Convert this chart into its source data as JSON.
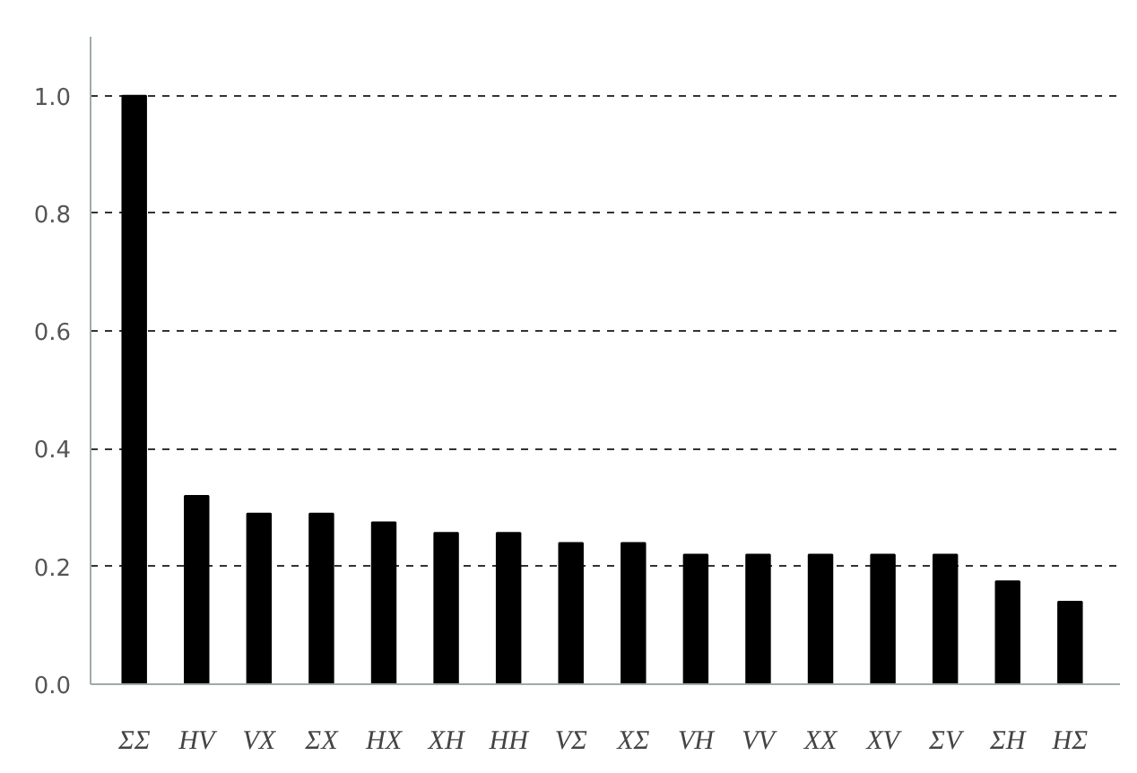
{
  "chart_data": {
    "type": "bar",
    "categories": [
      "ΣΣ",
      "HV",
      "VX",
      "ΣX",
      "HX",
      "XH",
      "HH",
      "VΣ",
      "XΣ",
      "VH",
      "VV",
      "XX",
      "XV",
      "ΣV",
      "ΣH",
      "HΣ"
    ],
    "values": [
      1.0,
      0.32,
      0.29,
      0.29,
      0.275,
      0.257,
      0.257,
      0.24,
      0.24,
      0.22,
      0.22,
      0.22,
      0.22,
      0.22,
      0.175,
      0.14
    ],
    "color": "#000000",
    "ylim": [
      0,
      1.1
    ],
    "yticks": [
      {
        "value": 0,
        "label": "0.0"
      },
      {
        "value": 0.2,
        "label": "0.2"
      },
      {
        "value": 0.4,
        "label": "0.4"
      },
      {
        "value": 0.6,
        "label": "0.6"
      },
      {
        "value": 0.8,
        "label": "0.8"
      },
      {
        "value": 1.0,
        "label": "1.0"
      }
    ],
    "grid": "y"
  }
}
